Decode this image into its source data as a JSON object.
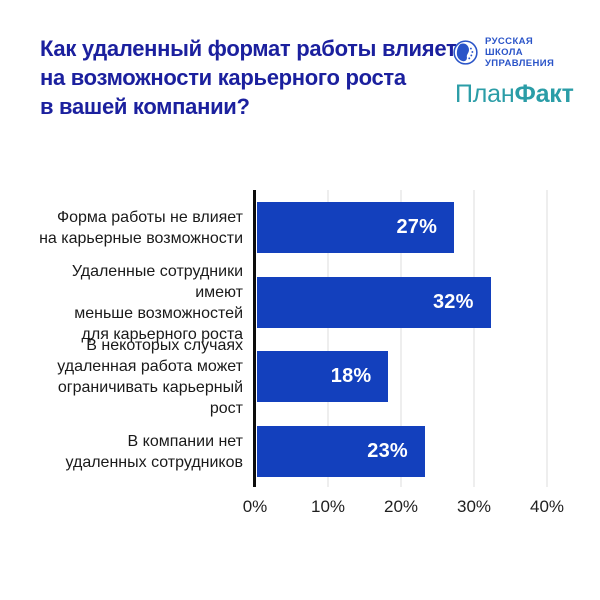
{
  "header": {
    "title": "Как удаленный формат работы влияет\nна возможности карьерного роста\nв вашей компании?",
    "title_color": "#1b209e",
    "logos": {
      "rsu": {
        "text": "РУССКАЯ\nШКОЛА\nУПРАВЛЕНИЯ",
        "color": "#2a54c8"
      },
      "planfact": {
        "part1": "План",
        "part2": "Факт",
        "color": "#2b9da7"
      }
    }
  },
  "chart_data": {
    "type": "bar",
    "orientation": "horizontal",
    "title": "Как удаленный формат работы влияет на возможности карьерного роста в вашей компании?",
    "categories": [
      "Форма работы не влияет\nна карьерные возможности",
      "Удаленные сотрудники имеют\nменьше возможностей\nдля карьерного роста",
      "В некоторых случаях\nудаленная работа может\nограничивать карьерный рост",
      "В компании нет\nудаленных сотрудников"
    ],
    "values": [
      27,
      32,
      18,
      23
    ],
    "value_labels": [
      "27%",
      "32%",
      "18%",
      "23%"
    ],
    "x_ticks": [
      "0%",
      "10%",
      "20%",
      "30%",
      "40%"
    ],
    "xlim": [
      0,
      40
    ],
    "grid": true,
    "bar_color": "#1340bd",
    "value_label_color": "#ffffff",
    "gridline_color": "#dcdcdc",
    "axis_color": "#0c0c0c"
  }
}
